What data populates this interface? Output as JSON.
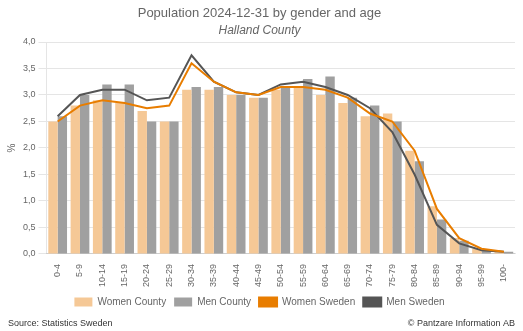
{
  "chart_data": {
    "type": "bar",
    "title": "Population 2024-12-31 by gender and age",
    "subtitle": "Halland County",
    "ylabel": "%",
    "categories": [
      "0-4",
      "5-9",
      "10-14",
      "15-19",
      "20-24",
      "25-29",
      "30-34",
      "35-39",
      "40-44",
      "45-49",
      "50-54",
      "55-59",
      "60-64",
      "65-69",
      "70-74",
      "75-79",
      "80-84",
      "85-89",
      "90-94",
      "95-99",
      "100-"
    ],
    "series": [
      {
        "name": "Women County",
        "type": "bar",
        "color": "#f5c896",
        "values": [
          2.5,
          2.8,
          2.9,
          2.85,
          2.7,
          2.5,
          3.1,
          3.1,
          3.0,
          2.95,
          3.1,
          3.15,
          3.0,
          2.85,
          2.6,
          2.65,
          1.95,
          0.9,
          0.3,
          0.1,
          0.04
        ]
      },
      {
        "name": "Men County",
        "type": "bar",
        "color": "#a0a0a0",
        "values": [
          2.6,
          3.0,
          3.2,
          3.2,
          2.5,
          2.5,
          3.15,
          3.15,
          3.0,
          2.95,
          3.15,
          3.3,
          3.35,
          2.95,
          2.8,
          2.5,
          1.75,
          0.65,
          0.25,
          0.08,
          0.04
        ]
      },
      {
        "name": "Women Sweden",
        "type": "line",
        "color": "#e87d00",
        "values": [
          2.5,
          2.8,
          2.9,
          2.85,
          2.75,
          2.8,
          3.6,
          3.25,
          3.05,
          3.0,
          3.15,
          3.15,
          3.1,
          2.95,
          2.65,
          2.5,
          1.95,
          0.85,
          0.3,
          0.1,
          0.04
        ]
      },
      {
        "name": "Men Sweden",
        "type": "line",
        "color": "#555555",
        "values": [
          2.6,
          3.0,
          3.1,
          3.1,
          2.9,
          2.95,
          3.75,
          3.25,
          3.05,
          3.0,
          3.2,
          3.25,
          3.15,
          3.0,
          2.75,
          2.3,
          1.5,
          0.55,
          0.2,
          0.07,
          0.04
        ]
      }
    ],
    "ylim": [
      0.0,
      4.0
    ],
    "yticks": [
      {
        "value": 0.0,
        "label": "0,0"
      },
      {
        "value": 0.5,
        "label": "0,5"
      },
      {
        "value": 1.0,
        "label": "1,0"
      },
      {
        "value": 1.5,
        "label": "1,5"
      },
      {
        "value": 2.0,
        "label": "2,0"
      },
      {
        "value": 2.5,
        "label": "2,5"
      },
      {
        "value": 3.0,
        "label": "3,0"
      },
      {
        "value": 3.5,
        "label": "3,5"
      },
      {
        "value": 4.0,
        "label": "4,0"
      }
    ],
    "grid": "y",
    "legend": "bottom",
    "annotations": [
      "Source: Statistics Sweden",
      "© Pantzare Information AB"
    ]
  }
}
